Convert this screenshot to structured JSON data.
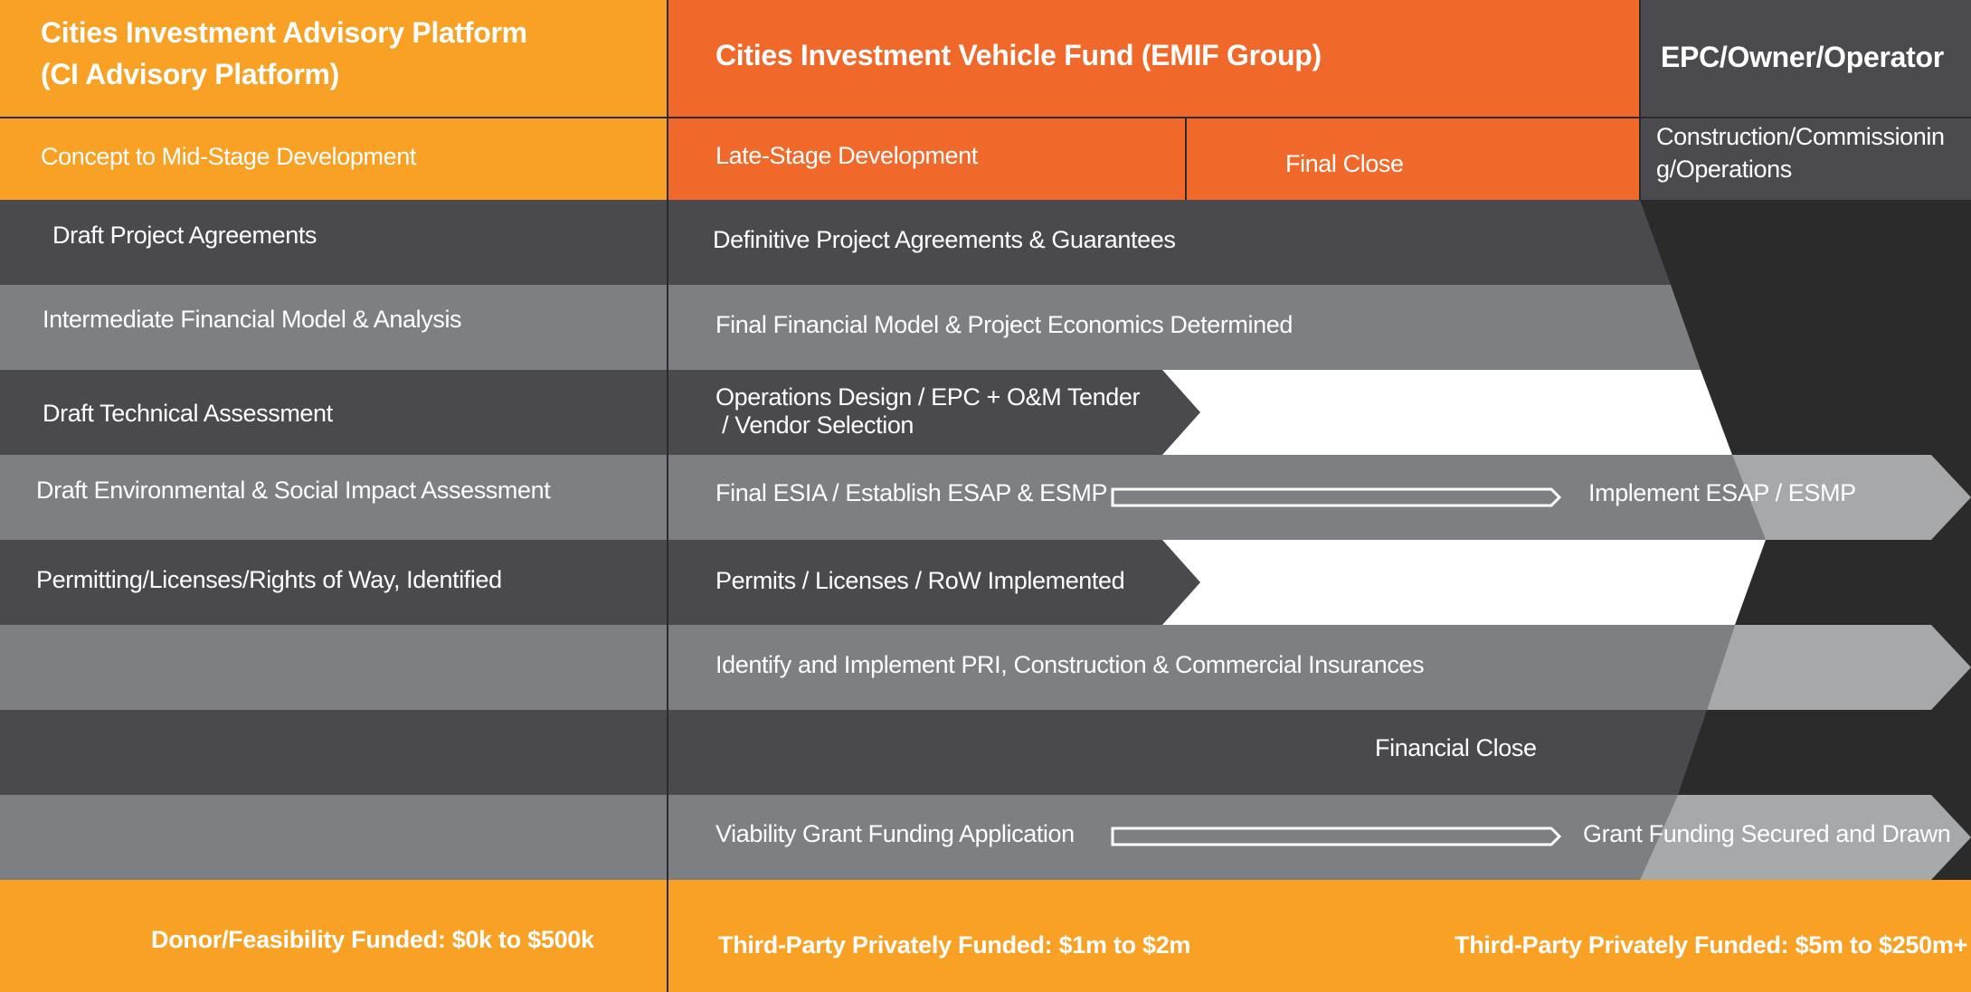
{
  "colors": {
    "orange_light": "#F8A124",
    "orange_dark": "#F0692B",
    "charcoal": "#4A494D",
    "header_gray": "#4B4A4F",
    "gray_light": "#7E7F83",
    "silver": "#A7A8AA",
    "black_band": "#2B2B2C",
    "white": "#FFFFFF"
  },
  "header": {
    "col1_title_line1": "Cities Investment  Advisory Platform",
    "col1_title_line2": "(CI Advisory Platform)",
    "col2_title": "Cities Investment Vehicle Fund (EMIF Group)",
    "col3_title": "EPC/Owner/Operator"
  },
  "stages": {
    "concept": "Concept to Mid-Stage Development",
    "late": "Late-Stage Development",
    "final_close": "Final Close",
    "construction_line1": "Construction/Commissionin",
    "construction_line2": "g/Operations"
  },
  "rows": [
    {
      "left": "Draft Project Agreements",
      "right": "Definitive Project Agreements & Guarantees"
    },
    {
      "left": "Intermediate Financial Model & Analysis",
      "right": "Final Financial Model & Project Economics Determined"
    },
    {
      "left": "Draft Technical Assessment",
      "right_line1": "Operations Design / EPC + O&M Tender",
      "right_line2": " / Vendor Selection"
    },
    {
      "left": "Draft Environmental & Social Impact Assessment",
      "right": "Final ESIA / Establish ESAP & ESMP",
      "far": "Implement ESAP / ESMP"
    },
    {
      "left": "Permitting/Licenses/Rights of Way, Identified",
      "right": "Permits / Licenses / RoW Implemented"
    },
    {
      "left": "",
      "right": "Identify and Implement PRI, Construction & Commercial Insurances"
    },
    {
      "left": "",
      "right": "Financial Close"
    },
    {
      "left": "",
      "right": "Viability Grant Funding Application",
      "far": "Grant Funding Secured and Drawn"
    }
  ],
  "footer": {
    "left": "Donor/Feasibility Funded: $0k to $500k",
    "middle": "Third-Party Privately Funded: $1m to $2m",
    "right": "Third-Party Privately Funded: $5m to $250m+"
  }
}
